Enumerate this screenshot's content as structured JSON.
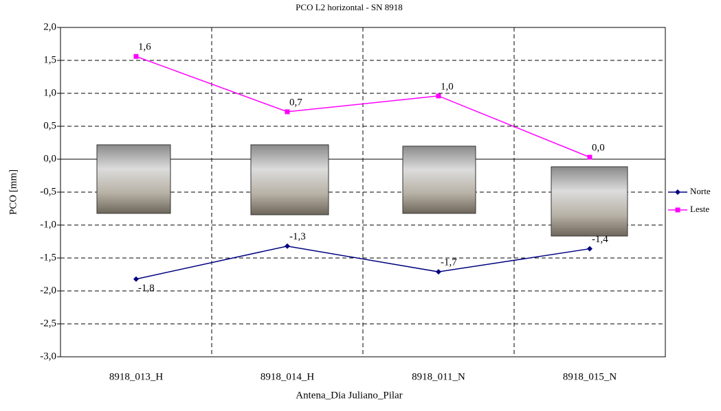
{
  "chart_data": {
    "type": "line",
    "title": "PCO L2 horizontal - SN 8918",
    "x_label": "Antena_Dia Juliano_Pilar",
    "y_label": "PCO [mm]",
    "categories": [
      "8918_013_H",
      "8918_014_H",
      "8918_011_N",
      "8918_015_N"
    ],
    "series": [
      {
        "name": "Norte",
        "color": "#000080",
        "marker": "diamond",
        "values": [
          -1.82,
          -1.32,
          -1.71,
          -1.36
        ],
        "value_labels": [
          "-1,8",
          "-1,3",
          "-1,7",
          "-1,4"
        ]
      },
      {
        "name": "Leste",
        "color": "#ff00ff",
        "marker": "square",
        "values": [
          1.56,
          0.72,
          0.96,
          0.03
        ],
        "value_labels": [
          "1,6",
          "0,7",
          "1,0",
          "0,0"
        ]
      }
    ],
    "ylim": [
      -3,
      2
    ],
    "yticks": [
      {
        "value": -3,
        "label": "-3,0"
      },
      {
        "value": -2.5,
        "label": "-2,5"
      },
      {
        "value": -2,
        "label": "-2,0"
      },
      {
        "value": -1.5,
        "label": "-1,5"
      },
      {
        "value": -1,
        "label": "-1,0"
      },
      {
        "value": -0.5,
        "label": "-0,5"
      },
      {
        "value": 0,
        "label": "0,0"
      },
      {
        "value": 0.5,
        "label": "0,5"
      },
      {
        "value": 1,
        "label": "1,0"
      },
      {
        "value": 1.5,
        "label": "1,5"
      },
      {
        "value": 2,
        "label": "2,0"
      }
    ],
    "grid": true,
    "legend": "right"
  }
}
